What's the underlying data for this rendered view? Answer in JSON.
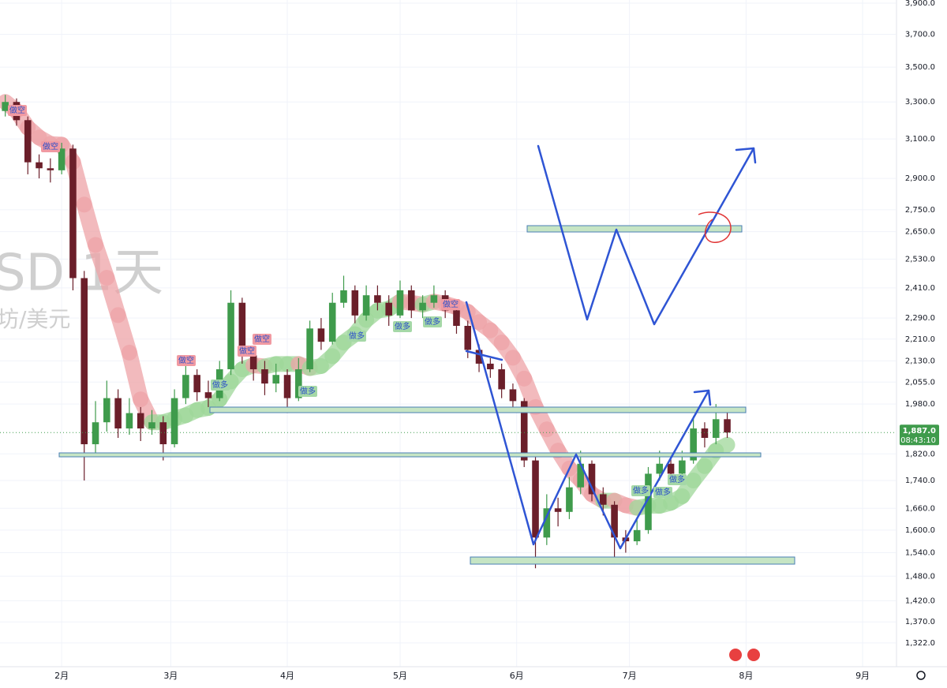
{
  "chart_data": {
    "type": "candlestick",
    "log_scale": true,
    "grid": true,
    "up_color": "#3f9b4c",
    "down_color": "#6b1f2a",
    "watermark": {
      "symbol": "SD  1天",
      "name": "坊/美元"
    },
    "signals": [
      "做空",
      "做空",
      "做空",
      "做空",
      "做空",
      "做空",
      "做多",
      "做多",
      "做多",
      "做多",
      "做多",
      "做多",
      "做多",
      "做多"
    ],
    "last_price": {
      "value": 1887,
      "label": "1,887.0"
    },
    "countdown": "08:43:10",
    "xlim": [
      14.6,
      252.8
    ],
    "xticks": [
      {
        "value": 31,
        "label": "2月"
      },
      {
        "value": 60,
        "label": "3月"
      },
      {
        "value": 91,
        "label": "4月"
      },
      {
        "value": 121,
        "label": "5月"
      },
      {
        "value": 152,
        "label": "6月"
      },
      {
        "value": 182,
        "label": "7月"
      },
      {
        "value": 213,
        "label": "8月"
      },
      {
        "value": 244,
        "label": "9月"
      }
    ],
    "ylim": [
      1270,
      3921
    ],
    "yticks": [
      {
        "value": 3900,
        "label": "3,900.0"
      },
      {
        "value": 3700,
        "label": "3,700.0"
      },
      {
        "value": 3500,
        "label": "3,500.0"
      },
      {
        "value": 3300,
        "label": "3,300.0"
      },
      {
        "value": 3100,
        "label": "3,100.0"
      },
      {
        "value": 2900,
        "label": "2,900.0"
      },
      {
        "value": 2750,
        "label": "2,750.0"
      },
      {
        "value": 2650,
        "label": "2,650.0"
      },
      {
        "value": 2530,
        "label": "2,530.0"
      },
      {
        "value": 2410,
        "label": "2,410.0"
      },
      {
        "value": 2290,
        "label": "2,290.0"
      },
      {
        "value": 2210,
        "label": "2,210.0"
      },
      {
        "value": 2130,
        "label": "2,130.0"
      },
      {
        "value": 2055,
        "label": "2,055.0"
      },
      {
        "value": 1980,
        "label": "1,980.0"
      },
      {
        "value": 1820,
        "label": "1,820.0"
      },
      {
        "value": 1740,
        "label": "1,740.0"
      },
      {
        "value": 1660,
        "label": "1,660.0"
      },
      {
        "value": 1600,
        "label": "1,600.0"
      },
      {
        "value": 1540,
        "label": "1,540.0"
      },
      {
        "value": 1480,
        "label": "1,480.0"
      },
      {
        "value": 1420,
        "label": "1,420.0"
      },
      {
        "value": 1370,
        "label": "1,370.0"
      },
      {
        "value": 1322,
        "label": "1,322.0"
      }
    ],
    "x": [
      16,
      19,
      22,
      25,
      28,
      31,
      34,
      37,
      40,
      43,
      46,
      49,
      52,
      55,
      58,
      61,
      64,
      67,
      70,
      73,
      76,
      79,
      82,
      85,
      88,
      91,
      94,
      97,
      100,
      103,
      106,
      109,
      112,
      115,
      118,
      121,
      124,
      127,
      130,
      133,
      136,
      139,
      142,
      145,
      148,
      151,
      154,
      157,
      160,
      163,
      166,
      169,
      172,
      175,
      178,
      181,
      184,
      187,
      190,
      193,
      196,
      199,
      202,
      205,
      208
    ],
    "open": [
      3250,
      3300,
      3200,
      2980,
      2950,
      2940,
      3050,
      2450,
      1850,
      1920,
      2000,
      1900,
      1950,
      1900,
      1920,
      1850,
      2000,
      2080,
      2020,
      2000,
      2100,
      2350,
      2150,
      2100,
      2050,
      2080,
      2000,
      2100,
      2250,
      2200,
      2350,
      2400,
      2300,
      2380,
      2350,
      2300,
      2400,
      2320,
      2350,
      2380,
      2320,
      2260,
      2170,
      2120,
      2100,
      2030,
      1990,
      1800,
      1580,
      1660,
      1650,
      1720,
      1790,
      1700,
      1670,
      1580,
      1570,
      1600,
      1760,
      1790,
      1760,
      1800,
      1900,
      1870,
      1930
    ],
    "high": [
      3340,
      3320,
      3220,
      3020,
      3000,
      3080,
      3070,
      2480,
      1990,
      2060,
      2030,
      2000,
      1970,
      1960,
      1940,
      2030,
      2120,
      2100,
      2060,
      2130,
      2400,
      2370,
      2180,
      2130,
      2120,
      2100,
      2140,
      2280,
      2290,
      2390,
      2460,
      2420,
      2420,
      2420,
      2380,
      2440,
      2420,
      2380,
      2420,
      2400,
      2340,
      2280,
      2190,
      2140,
      2120,
      2050,
      2000,
      1810,
      1700,
      1690,
      1750,
      1830,
      1800,
      1720,
      1680,
      1600,
      1630,
      1780,
      1830,
      1810,
      1830,
      1940,
      1920,
      1980,
      1960
    ],
    "low": [
      3220,
      3170,
      2920,
      2900,
      2880,
      2920,
      2400,
      1740,
      1820,
      1890,
      1870,
      1880,
      1860,
      1880,
      1800,
      1840,
      1980,
      1990,
      1970,
      1990,
      2080,
      2120,
      2060,
      2010,
      2020,
      1950,
      1990,
      2090,
      2170,
      2190,
      2330,
      2270,
      2280,
      2320,
      2260,
      2290,
      2290,
      2290,
      2330,
      2290,
      2230,
      2140,
      2090,
      2070,
      2000,
      1960,
      1780,
      1500,
      1560,
      1610,
      1630,
      1700,
      1680,
      1640,
      1520,
      1540,
      1560,
      1590,
      1740,
      1730,
      1740,
      1790,
      1840,
      1850,
      1870
    ],
    "close": [
      3300,
      3200,
      2980,
      2950,
      2940,
      3050,
      2450,
      1850,
      1920,
      2000,
      1900,
      1950,
      1900,
      1920,
      1850,
      2000,
      2080,
      2020,
      2000,
      2100,
      2350,
      2150,
      2100,
      2050,
      2080,
      2000,
      2100,
      2250,
      2200,
      2350,
      2400,
      2300,
      2380,
      2350,
      2300,
      2400,
      2320,
      2350,
      2380,
      2320,
      2260,
      2170,
      2120,
      2100,
      2030,
      1990,
      1800,
      1580,
      1660,
      1650,
      1720,
      1790,
      1700,
      1670,
      1580,
      1570,
      1600,
      1760,
      1790,
      1760,
      1800,
      1900,
      1870,
      1930,
      1887
    ]
  }
}
